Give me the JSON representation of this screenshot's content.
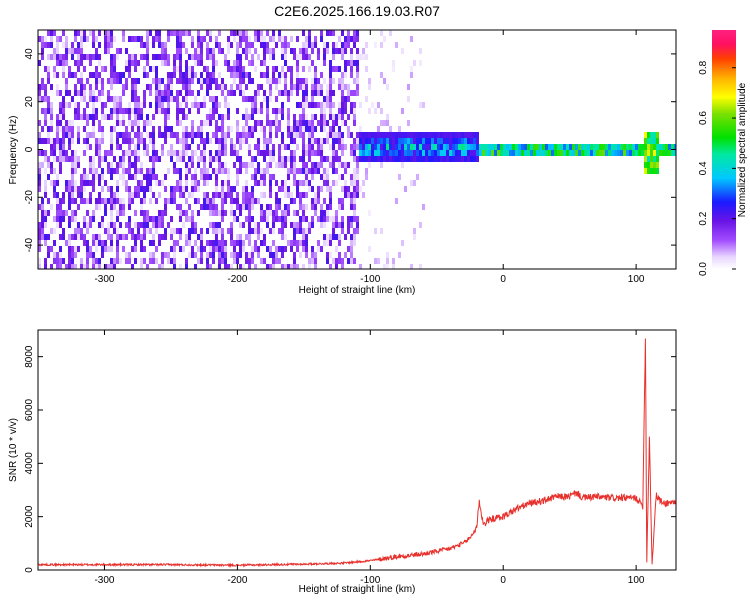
{
  "figure": {
    "title": "C2E6.2025.166.19.03.R07"
  },
  "chart_data": [
    {
      "type": "heatmap",
      "xlabel": "Height of straight line (km)",
      "ylabel": "Frequency (Hz)",
      "xlim": [
        -350,
        130
      ],
      "ylim": [
        -50,
        50
      ],
      "x_ticks": [
        -300,
        -200,
        -100,
        0,
        100
      ],
      "y_ticks": [
        -40,
        -20,
        0,
        20,
        40
      ],
      "colorbar": {
        "label": "Normalized spectral amplitude",
        "range": [
          0.0,
          0.95
        ],
        "ticks": [
          0.0,
          0.2,
          0.4,
          0.6,
          0.8
        ]
      },
      "regions": [
        {
          "x_range": [
            -350,
            -110
          ],
          "freq_range": [
            -50,
            50
          ],
          "amplitude": 0.1
        },
        {
          "x_range": [
            -110,
            -20
          ],
          "freq_range": [
            -6,
            6
          ],
          "center_freq": 2,
          "amplitude": 0.35
        },
        {
          "x_range": [
            -20,
            130
          ],
          "freq_range": [
            -3,
            4
          ],
          "center_freq": 1,
          "amplitude": 0.55
        },
        {
          "x_range": [
            105,
            115
          ],
          "freq_range": [
            -10,
            8
          ],
          "amplitude": 0.5
        }
      ],
      "grid": false
    },
    {
      "type": "line",
      "xlabel": "Height of straight line (km)",
      "ylabel": "SNR (10 * v/v)",
      "xlim": [
        -350,
        130
      ],
      "ylim": [
        0,
        9000
      ],
      "x_ticks": [
        -300,
        -200,
        -100,
        0,
        100
      ],
      "y_ticks": [
        0,
        2000,
        4000,
        6000,
        8000
      ],
      "color": "#e8302c",
      "series": [
        {
          "x": [
            -350,
            -300,
            -250,
            -200,
            -150,
            -120,
            -100,
            -80,
            -60,
            -40,
            -30,
            -25,
            -20,
            -18,
            -15,
            -10,
            0,
            10,
            20,
            30,
            40,
            50,
            55,
            60,
            70,
            80,
            90,
            100,
            105,
            107,
            108,
            110,
            112,
            115,
            120,
            130
          ],
          "values": [
            200,
            200,
            200,
            180,
            220,
            260,
            350,
            500,
            600,
            800,
            1000,
            1200,
            1600,
            2600,
            1700,
            1900,
            2000,
            2300,
            2500,
            2600,
            2750,
            2750,
            2900,
            2700,
            2750,
            2700,
            2700,
            2700,
            2400,
            8800,
            300,
            5000,
            200,
            2800,
            2500,
            2550
          ]
        }
      ],
      "grid": false
    }
  ]
}
